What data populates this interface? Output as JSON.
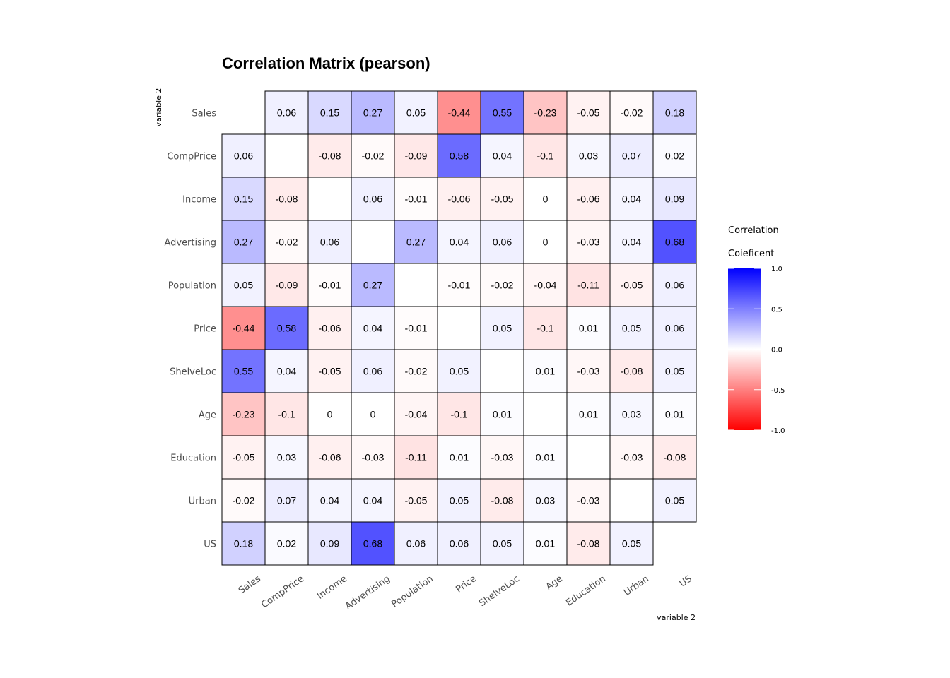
{
  "chart_data": {
    "type": "heatmap",
    "title": "Correlation Matrix (pearson)",
    "xlabel": "variable 2",
    "ylabel": "variable 2",
    "variables": [
      "Sales",
      "CompPrice",
      "Income",
      "Advertising",
      "Population",
      "Price",
      "ShelveLoc",
      "Age",
      "Education",
      "Urban",
      "US"
    ],
    "matrix": [
      [
        null,
        0.06,
        0.15,
        0.27,
        0.05,
        -0.44,
        0.55,
        -0.23,
        -0.05,
        -0.02,
        0.18
      ],
      [
        0.06,
        null,
        -0.08,
        -0.02,
        -0.09,
        0.58,
        0.04,
        -0.1,
        0.03,
        0.07,
        0.02
      ],
      [
        0.15,
        -0.08,
        null,
        0.06,
        -0.01,
        -0.06,
        -0.05,
        0,
        -0.06,
        0.04,
        0.09
      ],
      [
        0.27,
        -0.02,
        0.06,
        null,
        0.27,
        0.04,
        0.06,
        0,
        -0.03,
        0.04,
        0.68
      ],
      [
        0.05,
        -0.09,
        -0.01,
        0.27,
        null,
        -0.01,
        -0.02,
        -0.04,
        -0.11,
        -0.05,
        0.06
      ],
      [
        -0.44,
        0.58,
        -0.06,
        0.04,
        -0.01,
        null,
        0.05,
        -0.1,
        0.01,
        0.05,
        0.06
      ],
      [
        0.55,
        0.04,
        -0.05,
        0.06,
        -0.02,
        0.05,
        null,
        0.01,
        -0.03,
        -0.08,
        0.05
      ],
      [
        -0.23,
        -0.1,
        0,
        0,
        -0.04,
        -0.1,
        0.01,
        null,
        0.01,
        0.03,
        0.01
      ],
      [
        -0.05,
        0.03,
        -0.06,
        -0.03,
        -0.11,
        0.01,
        -0.03,
        0.01,
        null,
        -0.03,
        -0.08
      ],
      [
        -0.02,
        0.07,
        0.04,
        0.04,
        -0.05,
        0.05,
        -0.08,
        0.03,
        -0.03,
        null,
        0.05
      ],
      [
        0.18,
        0.02,
        0.09,
        0.68,
        0.06,
        0.06,
        0.05,
        0.01,
        -0.08,
        0.05,
        null
      ]
    ],
    "color_scale": {
      "low": "#ff0000",
      "mid": "#ffffff",
      "high": "#0000ff",
      "limits": [
        -1,
        1
      ]
    },
    "legend": {
      "title_lines": [
        "Correlation",
        "Coieficent"
      ],
      "ticks": [
        1,
        0.5,
        0,
        -0.5,
        -1
      ],
      "tick_labels": [
        "1.0",
        "0.5",
        "0.0",
        "-0.5",
        "-1.0"
      ],
      "placement": "right"
    },
    "grid": false
  }
}
